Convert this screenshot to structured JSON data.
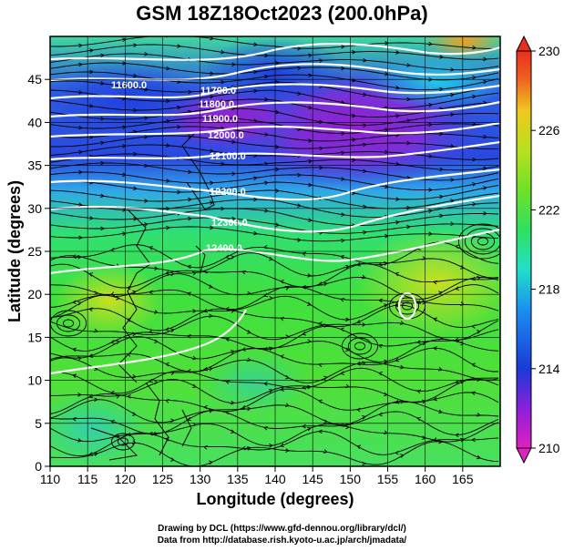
{
  "title": "GSM 18Z18Oct2023 (200.0hPa)",
  "xlabel": "Longitude (degrees)",
  "ylabel": "Latitude  (degrees)",
  "x_ticks": [
    "110",
    "115",
    "120",
    "125",
    "130",
    "135",
    "140",
    "145",
    "150",
    "155",
    "160",
    "165"
  ],
  "y_ticks": [
    "0",
    "5",
    "10",
    "15",
    "20",
    "25",
    "30",
    "35",
    "40",
    "45"
  ],
  "colorbar": {
    "ticks": [
      "210",
      "214",
      "218",
      "222",
      "226",
      "230"
    ],
    "colors": [
      "#e020c0",
      "#8a20d8",
      "#1a3ad8",
      "#1ab0f0",
      "#22e0a8",
      "#30e060",
      "#70e028",
      "#b8e020",
      "#f0c820",
      "#f06020",
      "#e83020"
    ]
  },
  "contour_labels": [
    "11600.0",
    "11700.0",
    "11800.0",
    "11900.0",
    "12000.0",
    "12100.0",
    "12200.0",
    "12300.0",
    "12400.0"
  ],
  "credits": {
    "line1": "Drawing by DCL (https://www.gfd-dennou.org/library/dcl/)",
    "line2": "Data from http://database.rish.kyoto-u.ac.jp/arch/jmadata/"
  },
  "chart_data": {
    "type": "heatmap",
    "title": "GSM 18Z18Oct2023 (200.0hPa)",
    "xlabel": "Longitude (degrees)",
    "ylabel": "Latitude  (degrees)",
    "xlim": [
      110,
      170
    ],
    "ylim": [
      0,
      50
    ],
    "colorbar_range": [
      210,
      230
    ],
    "colorbar_ticks": [
      210,
      214,
      218,
      222,
      226,
      230
    ],
    "contour_levels": [
      11600,
      11700,
      11800,
      11900,
      12000,
      12100,
      12200,
      12300,
      12400
    ],
    "grid": true
  }
}
